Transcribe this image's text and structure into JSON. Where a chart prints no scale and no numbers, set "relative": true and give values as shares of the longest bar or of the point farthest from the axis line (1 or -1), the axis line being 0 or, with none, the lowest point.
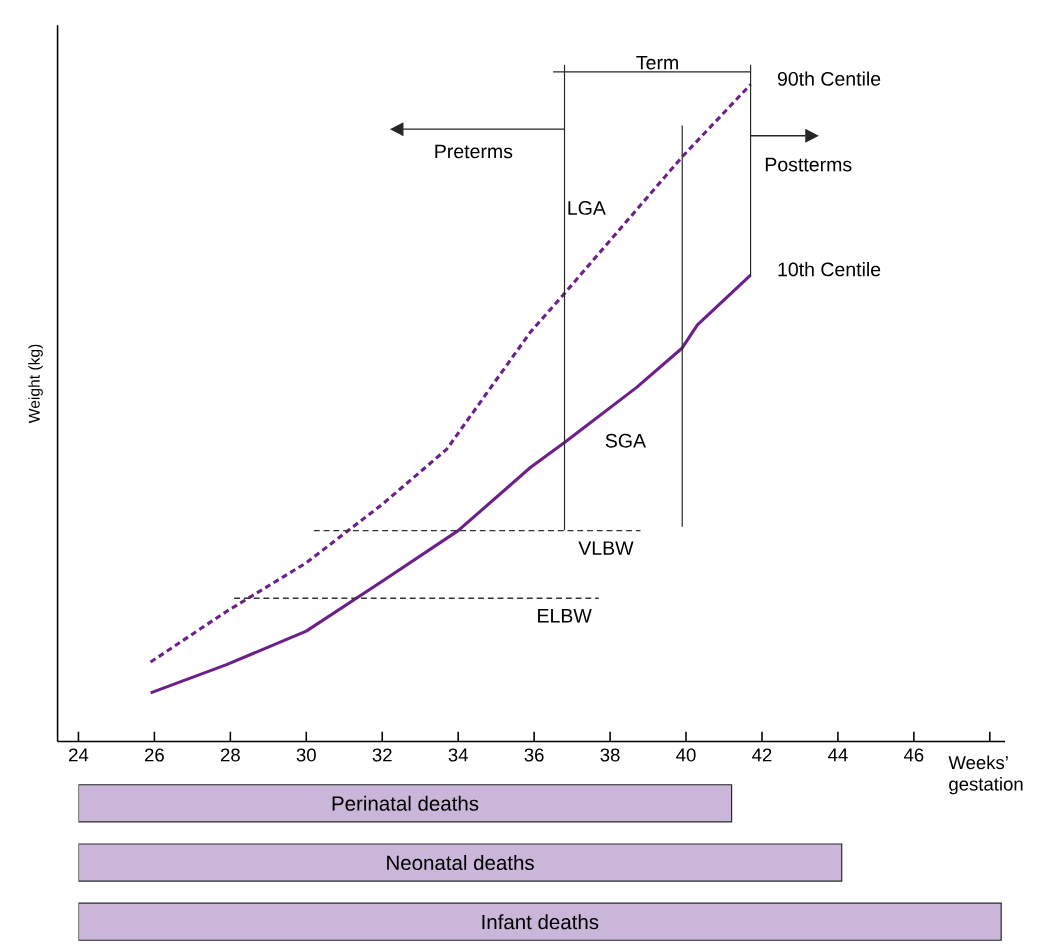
{
  "chart_data": [
    {
      "type": "line",
      "ylabel": "Weight (kg)",
      "xlabel": "Weeks’ gestation",
      "relative": true,
      "tick_labels": "x",
      "xlim": [
        23.45,
        48.4
      ],
      "xticks": [
        24,
        26,
        28,
        30,
        32,
        34,
        36,
        38,
        40,
        42,
        44,
        46,
        {
          "value": 48,
          "label": null
        }
      ],
      "series": [
        {
          "name": "90th Centile",
          "color": "#6b2189",
          "line_style": "dashed",
          "x": [
            25.9,
            27.9,
            30.0,
            32.0,
            33.7,
            35.9,
            36.8,
            39.9,
            41.7
          ],
          "values": [
            0.121,
            0.198,
            0.272,
            0.361,
            0.445,
            0.623,
            0.682,
            0.89,
            1.0
          ]
        },
        {
          "name": "10th Centile",
          "color": "#6b2189",
          "line_style": "solid",
          "x": [
            25.9,
            27.9,
            30.0,
            32.0,
            34.0,
            35.9,
            36.8,
            38.7,
            39.9,
            40.3,
            41.7
          ],
          "values": [
            0.074,
            0.117,
            0.168,
            0.244,
            0.321,
            0.417,
            0.455,
            0.539,
            0.599,
            0.634,
            0.71
          ]
        },
        {
          "name": "VLBW",
          "color": "#333333",
          "line_style": "dashed",
          "x": [
            30.2,
            38.8
          ],
          "values": [
            0.321,
            0.321
          ]
        },
        {
          "name": "ELBW",
          "color": "#333333",
          "line_style": "dashed",
          "x": [
            28.1,
            37.7
          ],
          "values": [
            0.218,
            0.218
          ]
        }
      ],
      "ref_lines": [
        {
          "axis": "x",
          "value": 36.8
        },
        {
          "axis": "x",
          "value": 41.7
        },
        {
          "axis": "x",
          "value": 39.9
        }
      ],
      "annotations": [
        "Preterms",
        "Postterms",
        "LGA",
        "SGA",
        "Term"
      ]
    },
    {
      "type": "bar",
      "orientation": "horizontal",
      "tick_labels": false,
      "color": "#c9b6d8",
      "categories": [
        "Perinatal deaths",
        "Neonatal deaths",
        "Infant deaths"
      ],
      "base": [
        24,
        24,
        24
      ],
      "values": [
        17.2,
        20.1,
        24.3
      ],
      "xlim": [
        24,
        48.4
      ],
      "xticks": [
        24,
        26,
        28,
        30,
        32,
        34,
        36,
        38,
        40,
        42,
        44,
        46
      ]
    }
  ]
}
